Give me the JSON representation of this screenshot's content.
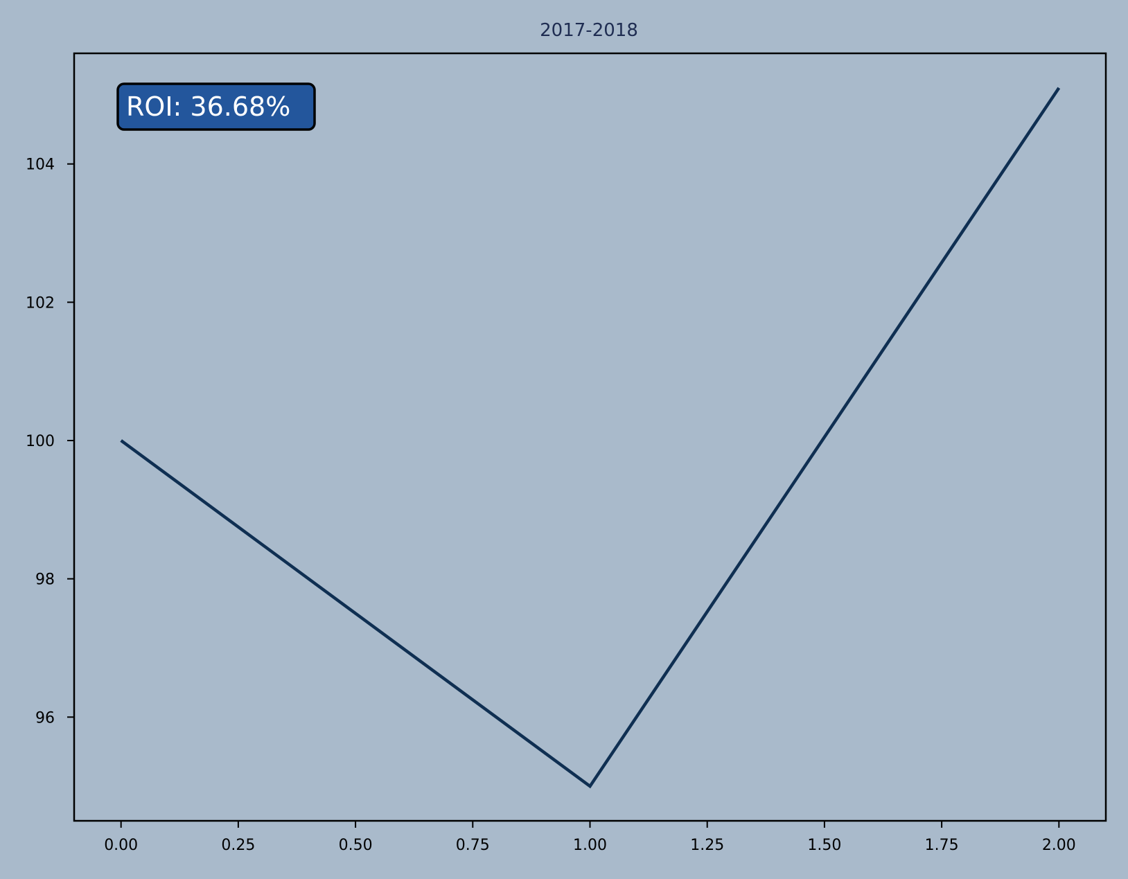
{
  "colors": {
    "background": "#a9bacb",
    "line": "#0f2f52",
    "title": "#1f2d52",
    "axes": "#000000",
    "badge_fill": "#23569c",
    "badge_text": "#ffffff"
  },
  "chart_data": {
    "type": "line",
    "title": "2017-2018",
    "xlabel": "",
    "ylabel": "",
    "x": [
      0,
      1,
      2
    ],
    "series": [
      {
        "values": [
          100.0,
          95.0,
          105.1
        ]
      }
    ],
    "xlim": [
      -0.1,
      2.1
    ],
    "ylim": [
      94.5,
      105.6
    ],
    "xticks": [
      0.0,
      0.25,
      0.5,
      0.75,
      1.0,
      1.25,
      1.5,
      1.75,
      2.0
    ],
    "xtick_labels": [
      "0.00",
      "0.25",
      "0.50",
      "0.75",
      "1.00",
      "1.25",
      "1.50",
      "1.75",
      "2.00"
    ],
    "yticks": [
      96,
      98,
      100,
      102,
      104
    ],
    "ytick_labels": [
      "96",
      "98",
      "100",
      "102",
      "104"
    ],
    "grid": false,
    "annotation": {
      "text": "ROI: 36.68%",
      "placement": "top-left"
    }
  }
}
